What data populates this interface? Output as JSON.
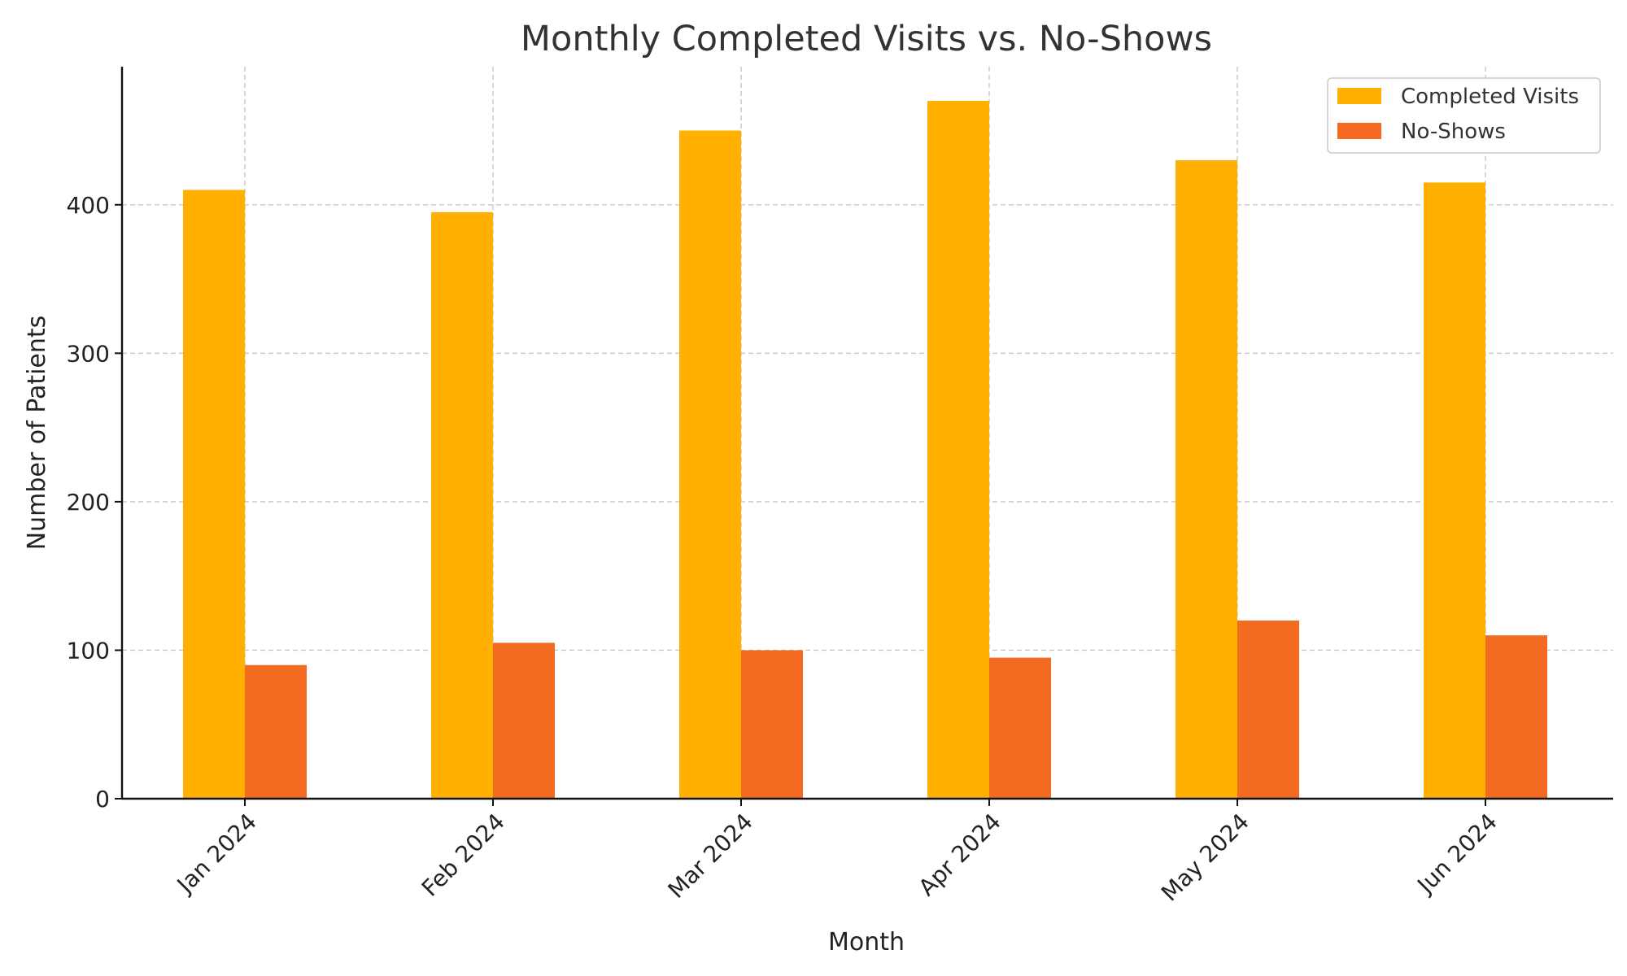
{
  "chart_data": {
    "type": "bar",
    "title": "Monthly Completed Visits vs. No-Shows",
    "xlabel": "Month",
    "ylabel": "Number of Patients",
    "categories": [
      "Jan 2024",
      "Feb 2024",
      "Mar 2024",
      "Apr 2024",
      "May 2024",
      "Jun 2024"
    ],
    "series": [
      {
        "name": "Completed Visits",
        "values": [
          410,
          395,
          450,
          470,
          430,
          415
        ],
        "color": "#FFB000"
      },
      {
        "name": "No-Shows",
        "values": [
          90,
          105,
          100,
          95,
          120,
          110
        ],
        "color": "#F36B21"
      }
    ],
    "ylim": [
      0,
      493
    ],
    "yticks": [
      0,
      100,
      200,
      300,
      400
    ],
    "grid": true,
    "legend_position": "top-right"
  }
}
